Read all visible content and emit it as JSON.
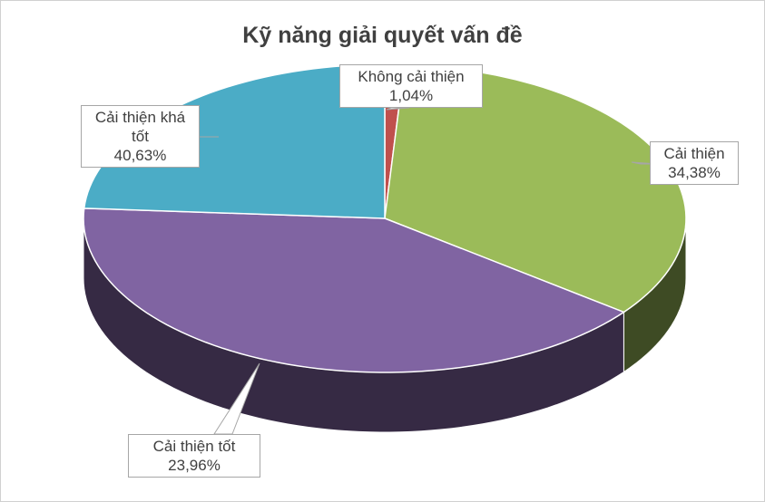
{
  "chart_data": {
    "type": "pie",
    "title": "Kỹ năng giải quyết vấn đề",
    "categories": [
      "Không cải thiện",
      "Cải thiện",
      "Cải thiện khá tốt",
      "Cải thiện tốt"
    ],
    "values": [
      1.04,
      34.38,
      40.63,
      23.96
    ],
    "value_labels": [
      "1,04%",
      "34,38%",
      "40,63%",
      "23,96%"
    ],
    "colors": [
      "#c0504d",
      "#9bbb59",
      "#8064a2",
      "#4bacc6"
    ]
  }
}
